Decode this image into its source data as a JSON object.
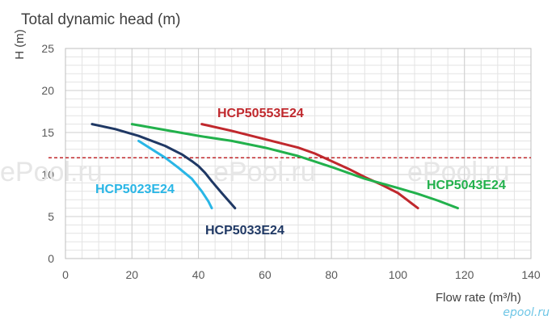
{
  "chart_data": {
    "type": "line",
    "title": "Total dynamic head (m)",
    "xlabel": "Flow rate (m³/h)",
    "ylabel": "H (m)",
    "xlim": [
      0,
      140
    ],
    "ylim": [
      0,
      25
    ],
    "xticks": [
      0,
      20,
      40,
      60,
      80,
      100,
      120,
      140
    ],
    "yticks": [
      0,
      5,
      10,
      15,
      20,
      25
    ],
    "grid": true,
    "reference_line": {
      "y": 12,
      "style": "dashed",
      "color": "#c0282d"
    },
    "series": [
      {
        "name": "HCP5023E24",
        "color": "#29b6e6",
        "x": [
          22,
          26,
          30,
          34,
          38,
          41,
          43,
          44
        ],
        "y": [
          14,
          13,
          12,
          10.8,
          9.5,
          8.0,
          6.8,
          6.0
        ]
      },
      {
        "name": "HCP5033E24",
        "color": "#1f3864",
        "x": [
          8,
          15,
          22,
          30,
          35,
          38,
          40,
          42,
          44,
          47,
          51
        ],
        "y": [
          16,
          15.4,
          14.6,
          13.4,
          12.4,
          11.6,
          11.0,
          10.2,
          9.2,
          7.8,
          6.0
        ]
      },
      {
        "name": "HCP50553E24",
        "color": "#c0282d",
        "x": [
          41,
          50,
          60,
          70,
          75,
          80,
          85,
          90,
          95,
          100,
          103,
          106
        ],
        "y": [
          16,
          15.2,
          14.2,
          13.2,
          12.5,
          11.6,
          10.7,
          9.7,
          8.8,
          7.8,
          6.9,
          6.0
        ]
      },
      {
        "name": "HCP5043E24",
        "color": "#22b14c",
        "x": [
          20,
          30,
          40,
          50,
          60,
          70,
          80,
          90,
          100,
          106,
          112,
          118
        ],
        "y": [
          16,
          15.3,
          14.6,
          14.0,
          13.2,
          12.2,
          10.9,
          9.5,
          8.4,
          7.7,
          6.9,
          6.0
        ]
      }
    ],
    "series_labels": [
      "HCP50553E24",
      "HCP5043E24",
      "HCP5023E24",
      "HCP5033E24"
    ]
  },
  "watermark": {
    "text": "ePool.ru",
    "corner_text": "epool.ru"
  }
}
